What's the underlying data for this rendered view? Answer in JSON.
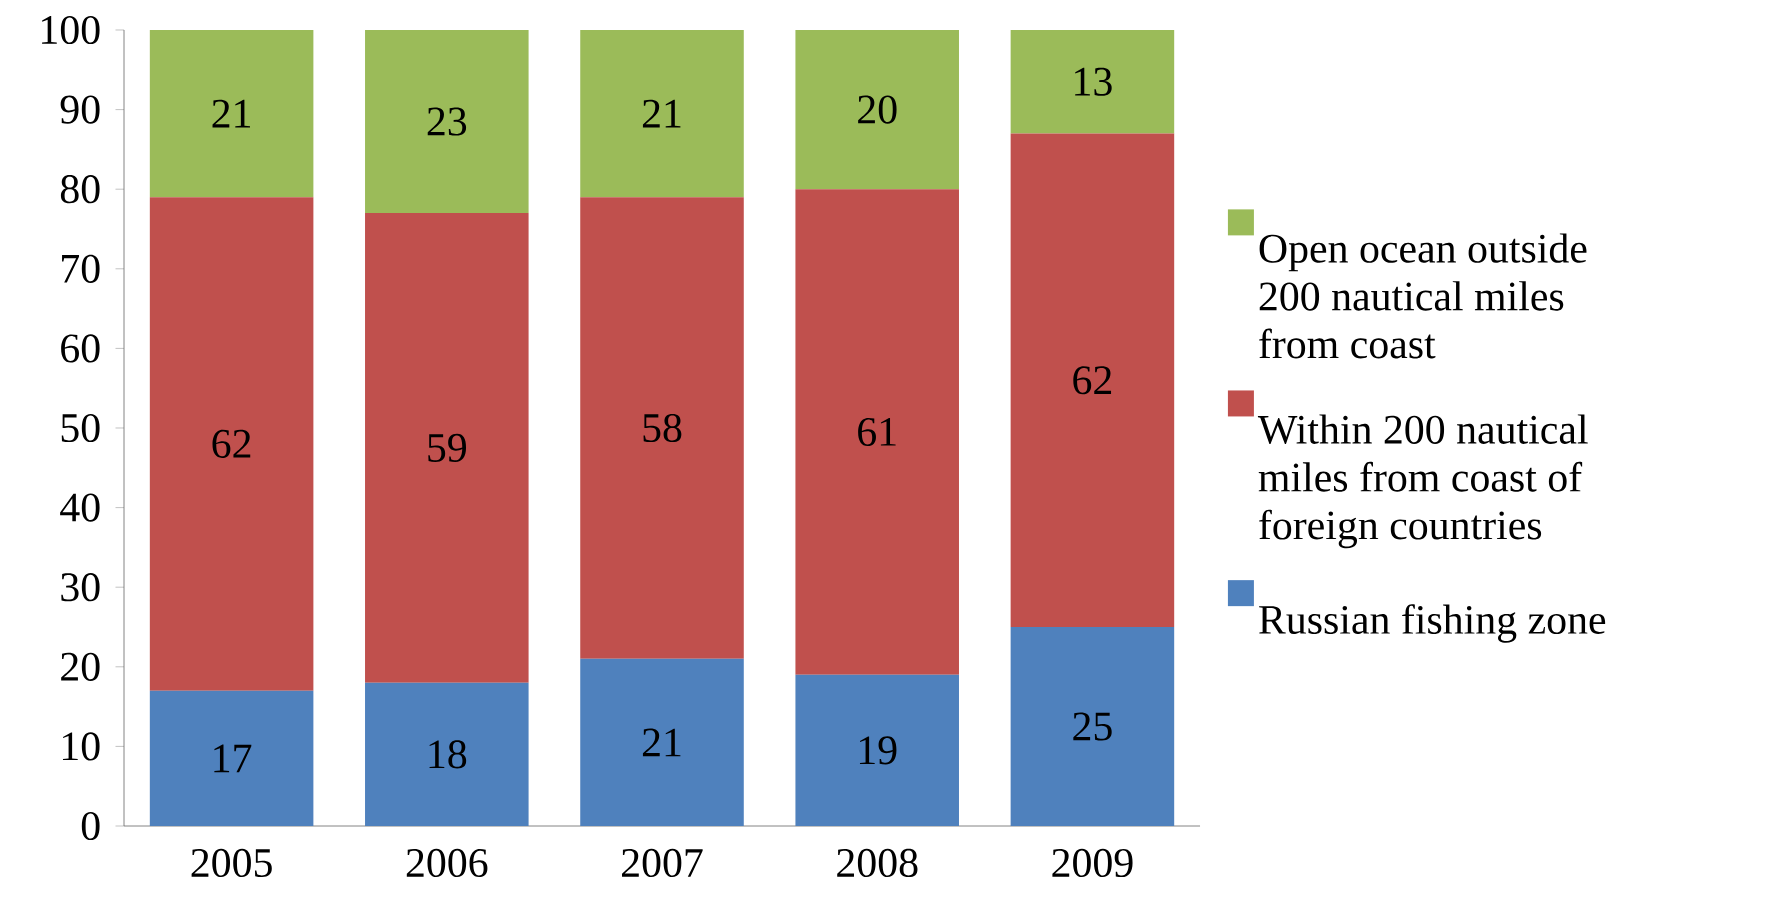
{
  "chart_data": {
    "type": "bar",
    "stacked": true,
    "data_labels": true,
    "legend": "right",
    "categories": [
      "2005",
      "2006",
      "2007",
      "2008",
      "2009"
    ],
    "ylim": [
      0,
      100
    ],
    "yticks": [
      0,
      10,
      20,
      30,
      40,
      50,
      60,
      70,
      80,
      90,
      100
    ],
    "series": [
      {
        "name": "Russian fishing zone",
        "color": "#4f81bd",
        "values": [
          17,
          18,
          21,
          19,
          25
        ]
      },
      {
        "name": "Within 200 nautical miles from coast of foreign countries",
        "color": "#c0504d",
        "values": [
          62,
          59,
          58,
          61,
          62
        ]
      },
      {
        "name": "Open ocean outside 200 nautical miles from coast",
        "color": "#9bbb59",
        "values": [
          21,
          23,
          21,
          20,
          13
        ]
      }
    ]
  }
}
